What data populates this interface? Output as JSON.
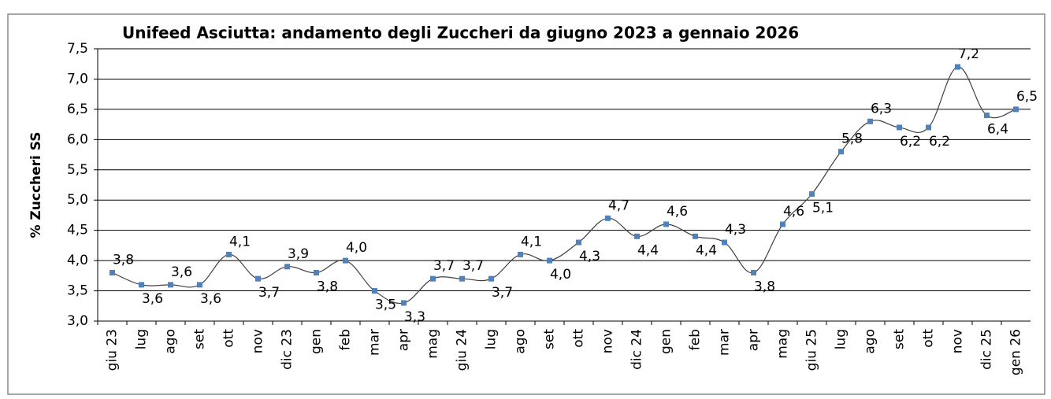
{
  "chart_data": {
    "type": "line",
    "title": "Unifeed Asciutta: andamento degli Zuccheri da giugno 2023 a gennaio 2026",
    "y_label": "% Zuccheri SS",
    "categories": [
      "giu 23",
      "lug",
      "ago",
      "set",
      "ott",
      "nov",
      "dic 23",
      "gen",
      "feb",
      "mar",
      "apr",
      "mag",
      "giu 24",
      "lug",
      "ago",
      "set",
      "ott",
      "nov",
      "dic 24",
      "gen",
      "feb",
      "mar",
      "apr",
      "mag",
      "giu 25",
      "lug",
      "ago",
      "set",
      "ott",
      "nov",
      "dic 25",
      "gen 26"
    ],
    "values": [
      3.8,
      3.6,
      3.6,
      3.6,
      4.1,
      3.7,
      3.9,
      3.8,
      4.0,
      3.5,
      3.3,
      3.7,
      3.7,
      3.7,
      4.1,
      4.0,
      4.3,
      4.7,
      4.4,
      4.6,
      4.4,
      4.3,
      3.8,
      4.6,
      5.1,
      5.8,
      6.3,
      6.2,
      6.2,
      7.2,
      6.4,
      6.5
    ],
    "value_labels": [
      "3,8",
      "3,6",
      "3,6",
      "3,6",
      "4,1",
      "3,7",
      "3,9",
      "3,8",
      "4,0",
      "3,5",
      "3,3",
      "3,7",
      "3,7",
      "3,7",
      "4,1",
      "4,0",
      "4,3",
      "4,7",
      "4,4",
      "4,6",
      "4,4",
      "4,3",
      "3,8",
      "4,6",
      "5,1",
      "5,8",
      "6,3",
      "6,2",
      "6,2",
      "7,2",
      "6,4",
      "6,5"
    ],
    "color": "#4f81bd",
    "line_color": "#404040",
    "ylim": [
      3.0,
      7.5
    ],
    "yticks": [
      {
        "value": 3.0,
        "label": "3,0"
      },
      {
        "value": 3.5,
        "label": "3,5"
      },
      {
        "value": 4.0,
        "label": "4,0"
      },
      {
        "value": 4.5,
        "label": "4,5"
      },
      {
        "value": 5.0,
        "label": "5,0"
      },
      {
        "value": 5.5,
        "label": "5,5"
      },
      {
        "value": 6.0,
        "label": "6,0"
      },
      {
        "value": 6.5,
        "label": "6,5"
      },
      {
        "value": 7.0,
        "label": "7,0"
      },
      {
        "value": 7.5,
        "label": "7,5"
      }
    ],
    "grid": true
  }
}
